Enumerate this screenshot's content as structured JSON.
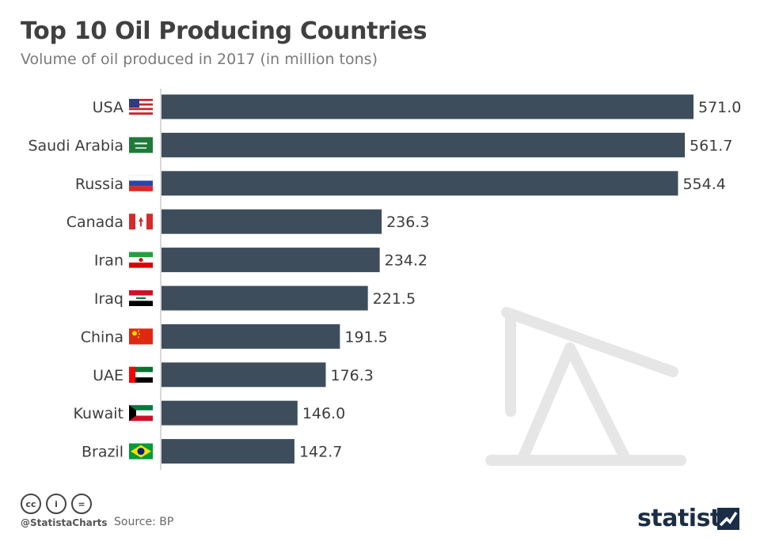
{
  "header": {
    "title": "Top 10 Oil Producing Countries",
    "subtitle": "Volume of oil produced in 2017 (in million tons)"
  },
  "chart_data": {
    "type": "bar",
    "orientation": "horizontal",
    "categories": [
      "USA",
      "Saudi Arabia",
      "Russia",
      "Canada",
      "Iran",
      "Iraq",
      "China",
      "UAE",
      "Kuwait",
      "Brazil"
    ],
    "values": [
      571.0,
      561.7,
      554.4,
      236.3,
      234.2,
      221.5,
      191.5,
      176.3,
      146.0,
      142.7
    ],
    "value_labels": [
      "571.0",
      "561.7",
      "554.4",
      "236.3",
      "234.2",
      "221.5",
      "191.5",
      "176.3",
      "146.0",
      "142.7"
    ],
    "title": "Top 10 Oil Producing Countries",
    "subtitle": "Volume of oil produced in 2017 (in million tons)",
    "xlim": [
      0,
      571.0
    ],
    "grid": false,
    "bar_color": "#3e4d5c"
  },
  "flags": [
    "usa-flag-icon",
    "saudi-arabia-flag-icon",
    "russia-flag-icon",
    "canada-flag-icon",
    "iran-flag-icon",
    "iraq-flag-icon",
    "china-flag-icon",
    "uae-flag-icon",
    "kuwait-flag-icon",
    "brazil-flag-icon"
  ],
  "footer": {
    "handle": "@StatistaCharts",
    "source": "Source: BP",
    "brand": "statista",
    "license_icons": [
      "cc-icon",
      "by-icon",
      "nd-icon"
    ],
    "license_glyphs": [
      "cc",
      "i",
      "="
    ]
  },
  "colors": {
    "bar": "#3e4d5c",
    "axis": "#cccccc",
    "brand": "#1b2e45"
  }
}
